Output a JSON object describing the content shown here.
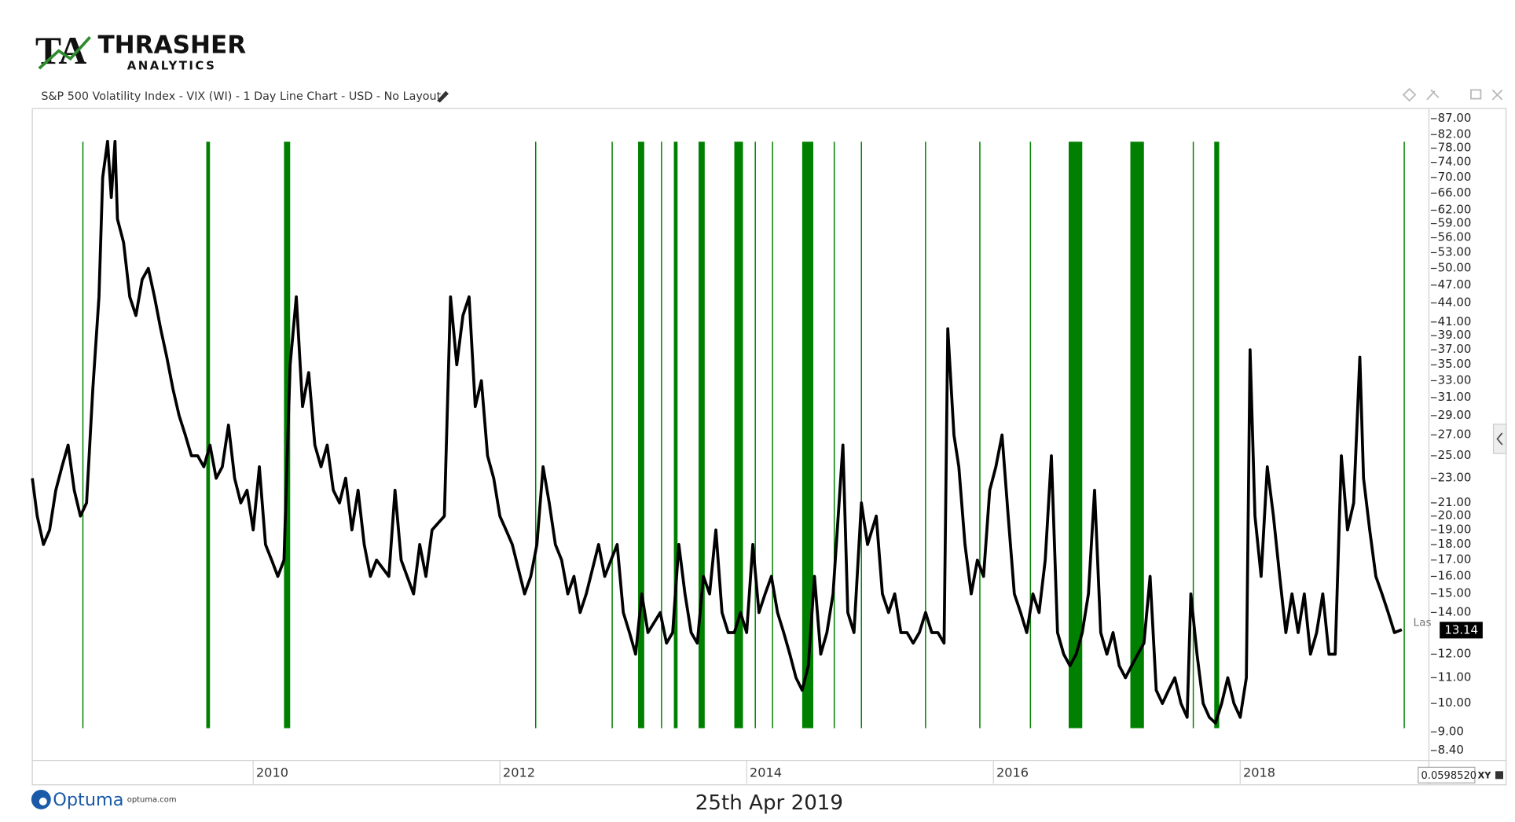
{
  "header": {
    "logo_mark": "TA",
    "brand": "THRASHER",
    "brand_sub": "ANALYTICS",
    "chart_name": "S&P 500 Volatility Index - VIX (WI) - 1 Day Line Chart - USD - No Layout"
  },
  "chart_data": {
    "type": "line",
    "color": "#000000",
    "log_scale": true,
    "grid": false,
    "x": [
      2008.21,
      2008.25,
      2008.3,
      2008.35,
      2008.4,
      2008.45,
      2008.5,
      2008.55,
      2008.6,
      2008.65,
      2008.7,
      2008.75,
      2008.78,
      2008.82,
      2008.85,
      2008.88,
      2008.9,
      2008.95,
      2009.0,
      2009.05,
      2009.1,
      2009.15,
      2009.2,
      2009.25,
      2009.3,
      2009.35,
      2009.4,
      2009.45,
      2009.5,
      2009.55,
      2009.6,
      2009.65,
      2009.7,
      2009.75,
      2009.8,
      2009.85,
      2009.9,
      2009.95,
      2010.0,
      2010.05,
      2010.1,
      2010.15,
      2010.2,
      2010.25,
      2010.3,
      2010.35,
      2010.4,
      2010.45,
      2010.5,
      2010.55,
      2010.6,
      2010.65,
      2010.7,
      2010.75,
      2010.8,
      2010.85,
      2010.9,
      2010.95,
      2011.0,
      2011.1,
      2011.15,
      2011.2,
      2011.3,
      2011.35,
      2011.4,
      2011.45,
      2011.55,
      2011.6,
      2011.65,
      2011.7,
      2011.75,
      2011.8,
      2011.85,
      2011.9,
      2011.95,
      2012.0,
      2012.05,
      2012.1,
      2012.2,
      2012.25,
      2012.3,
      2012.35,
      2012.4,
      2012.45,
      2012.5,
      2012.55,
      2012.6,
      2012.65,
      2012.7,
      2012.8,
      2012.85,
      2012.9,
      2012.95,
      2013.0,
      2013.05,
      2013.1,
      2013.15,
      2013.2,
      2013.3,
      2013.35,
      2013.4,
      2013.45,
      2013.5,
      2013.55,
      2013.6,
      2013.65,
      2013.7,
      2013.75,
      2013.8,
      2013.85,
      2013.9,
      2013.95,
      2014.0,
      2014.05,
      2014.1,
      2014.15,
      2014.2,
      2014.25,
      2014.3,
      2014.35,
      2014.4,
      2014.45,
      2014.5,
      2014.55,
      2014.6,
      2014.65,
      2014.7,
      2014.78,
      2014.82,
      2014.87,
      2014.93,
      2014.98,
      2015.05,
      2015.1,
      2015.15,
      2015.2,
      2015.25,
      2015.3,
      2015.35,
      2015.4,
      2015.45,
      2015.5,
      2015.55,
      2015.6,
      2015.63,
      2015.68,
      2015.72,
      2015.77,
      2015.82,
      2015.87,
      2015.92,
      2015.97,
      2016.02,
      2016.07,
      2016.12,
      2016.17,
      2016.22,
      2016.27,
      2016.32,
      2016.37,
      2016.42,
      2016.47,
      2016.52,
      2016.57,
      2016.62,
      2016.67,
      2016.72,
      2016.77,
      2016.82,
      2016.87,
      2016.92,
      2016.97,
      2017.02,
      2017.07,
      2017.12,
      2017.17,
      2017.22,
      2017.27,
      2017.32,
      2017.37,
      2017.42,
      2017.47,
      2017.52,
      2017.57,
      2017.6,
      2017.65,
      2017.7,
      2017.75,
      2017.8,
      2017.85,
      2017.9,
      2017.95,
      2018.0,
      2018.05,
      2018.08,
      2018.12,
      2018.17,
      2018.22,
      2018.27,
      2018.32,
      2018.37,
      2018.42,
      2018.47,
      2018.52,
      2018.57,
      2018.62,
      2018.67,
      2018.72,
      2018.77,
      2018.82,
      2018.87,
      2018.92,
      2018.97,
      2019.0,
      2019.05,
      2019.1,
      2019.15,
      2019.2,
      2019.25,
      2019.31
    ],
    "values": [
      23,
      20,
      18,
      19,
      22,
      24,
      26,
      22,
      20,
      21,
      32,
      45,
      70,
      80,
      65,
      80,
      60,
      55,
      45,
      42,
      48,
      50,
      45,
      40,
      36,
      32,
      29,
      27,
      25,
      25,
      24,
      26,
      23,
      24,
      28,
      23,
      21,
      22,
      19,
      24,
      18,
      17,
      16,
      17,
      35,
      45,
      30,
      34,
      26,
      24,
      26,
      22,
      21,
      23,
      19,
      22,
      18,
      16,
      17,
      16,
      22,
      17,
      15,
      18,
      16,
      19,
      20,
      45,
      35,
      42,
      45,
      30,
      33,
      25,
      23,
      20,
      19,
      18,
      15,
      16,
      18,
      24,
      21,
      18,
      17,
      15,
      16,
      14,
      15,
      18,
      16,
      17,
      18,
      14,
      13,
      12,
      15,
      13,
      14,
      12.5,
      13,
      18,
      15,
      13,
      12.5,
      16,
      15,
      19,
      14,
      13,
      13,
      14,
      13,
      18,
      14,
      15,
      16,
      14,
      13,
      12,
      11,
      10.5,
      11.5,
      16,
      12,
      13,
      15,
      26,
      14,
      13,
      21,
      18,
      20,
      15,
      14,
      15,
      13,
      13,
      12.5,
      13,
      14,
      13,
      13,
      12.5,
      40,
      27,
      24,
      18,
      15,
      17,
      16,
      22,
      24,
      27,
      20,
      15,
      14,
      13,
      15,
      14,
      17,
      25,
      13,
      12,
      11.5,
      12,
      13,
      15,
      22,
      13,
      12,
      13,
      11.5,
      11,
      11.5,
      12,
      12.5,
      16,
      10.5,
      10,
      10.5,
      11,
      10,
      9.5,
      15,
      12,
      10,
      9.5,
      9.3,
      10,
      11,
      10,
      9.5,
      11,
      37,
      20,
      16,
      24,
      20,
      16,
      13,
      15,
      13,
      15,
      12,
      13,
      15,
      12,
      12,
      25,
      19,
      21,
      36,
      23,
      19,
      16,
      15,
      14,
      13,
      13.14
    ],
    "bands_color": "#008000",
    "bands": [
      [
        2008.62,
        2008.62
      ],
      [
        2009.62,
        2009.65
      ],
      [
        2010.25,
        2010.3
      ],
      [
        2012.29,
        2012.29
      ],
      [
        2012.91,
        2012.91
      ],
      [
        2013.12,
        2013.17
      ],
      [
        2013.31,
        2013.31
      ],
      [
        2013.41,
        2013.44
      ],
      [
        2013.61,
        2013.66
      ],
      [
        2013.9,
        2013.97
      ],
      [
        2014.07,
        2014.07
      ],
      [
        2014.21,
        2014.21
      ],
      [
        2014.45,
        2014.54
      ],
      [
        2014.71,
        2014.71
      ],
      [
        2014.93,
        2014.93
      ],
      [
        2015.45,
        2015.45
      ],
      [
        2015.89,
        2015.89
      ],
      [
        2016.3,
        2016.3
      ],
      [
        2016.61,
        2016.72
      ],
      [
        2017.11,
        2017.22
      ],
      [
        2017.62,
        2017.62
      ],
      [
        2017.79,
        2017.83
      ],
      [
        2019.33,
        2019.33
      ]
    ],
    "xlim": [
      2008.21,
      2019.53
    ],
    "xticks": [
      2010,
      2012,
      2014,
      2016,
      2018
    ],
    "ylim": [
      8.1,
      90
    ],
    "yticks": [
      {
        "value": 87,
        "label": "87.00"
      },
      {
        "value": 82,
        "label": "82.00"
      },
      {
        "value": 78,
        "label": "78.00"
      },
      {
        "value": 74,
        "label": "74.00"
      },
      {
        "value": 70,
        "label": "70.00"
      },
      {
        "value": 66,
        "label": "66.00"
      },
      {
        "value": 62,
        "label": "62.00"
      },
      {
        "value": 59,
        "label": "59.00"
      },
      {
        "value": 56,
        "label": "56.00"
      },
      {
        "value": 53,
        "label": "53.00"
      },
      {
        "value": 50,
        "label": "50.00"
      },
      {
        "value": 47,
        "label": "47.00"
      },
      {
        "value": 44,
        "label": "44.00"
      },
      {
        "value": 41,
        "label": "41.00"
      },
      {
        "value": 39,
        "label": "39.00"
      },
      {
        "value": 37,
        "label": "37.00"
      },
      {
        "value": 35,
        "label": "35.00"
      },
      {
        "value": 33,
        "label": "33.00"
      },
      {
        "value": 31,
        "label": "31.00"
      },
      {
        "value": 29,
        "label": "29.00"
      },
      {
        "value": 27,
        "label": "27.00"
      },
      {
        "value": 25,
        "label": "25.00"
      },
      {
        "value": 23,
        "label": "23.00"
      },
      {
        "value": 21,
        "label": "21.00"
      },
      {
        "value": 20,
        "label": "20.00"
      },
      {
        "value": 19,
        "label": "19.00"
      },
      {
        "value": 18,
        "label": "18.00"
      },
      {
        "value": 17,
        "label": "17.00"
      },
      {
        "value": 16,
        "label": "16.00"
      },
      {
        "value": 15,
        "label": "15.00"
      },
      {
        "value": 14,
        "label": "14.00"
      },
      {
        "value": 12,
        "label": "12.00"
      },
      {
        "value": 11,
        "label": "11.00"
      },
      {
        "value": 10,
        "label": "10.00"
      },
      {
        "value": 9,
        "label": "9.00"
      },
      {
        "value": 8.4,
        "label": "8.40"
      }
    ],
    "last_label": "Las"
  },
  "footer": {
    "scale_value": "0.0598520",
    "scale_mode": "XY",
    "vendor": "Optuma",
    "vendor_url": "optuma.com",
    "date": "25th Apr 2019"
  }
}
